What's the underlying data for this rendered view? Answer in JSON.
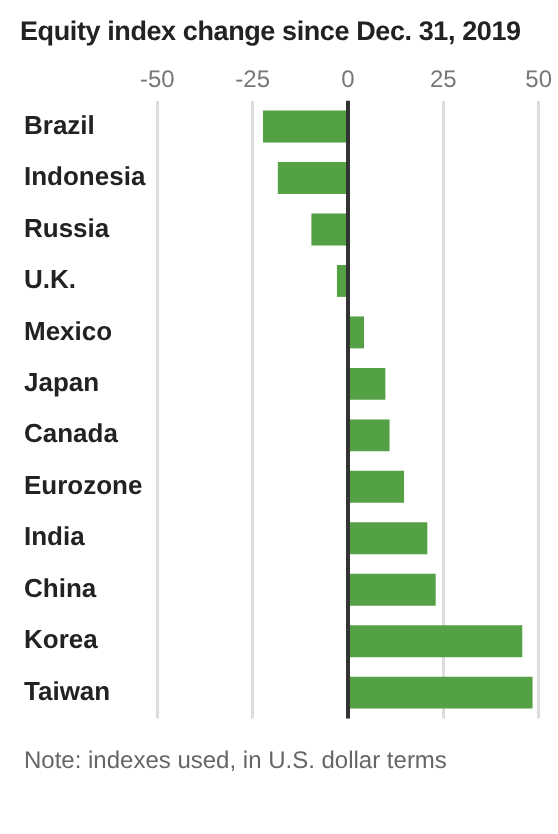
{
  "chart_data": {
    "type": "bar",
    "orientation": "horizontal",
    "title": "Equity index change since Dec. 31, 2019",
    "categories": [
      "Brazil",
      "Indonesia",
      "Russia",
      "U.K.",
      "Mexico",
      "Japan",
      "Canada",
      "Eurozone",
      "India",
      "China",
      "Korea",
      "Taiwan"
    ],
    "values": [
      -22.3,
      -18.4,
      -9.6,
      -2.9,
      4.2,
      9.8,
      10.9,
      14.7,
      20.8,
      23.0,
      45.7,
      48.4
    ],
    "color": "#53a045",
    "xlim": [
      -50,
      50
    ],
    "xticks": [
      -50,
      -25,
      0,
      25,
      50
    ],
    "grid": "x",
    "ref_lines": [
      {
        "axis": "x",
        "value": 0,
        "color": "#333333"
      }
    ],
    "annotations": [
      "Note: indexes used, in U.S. dollar terms"
    ]
  }
}
